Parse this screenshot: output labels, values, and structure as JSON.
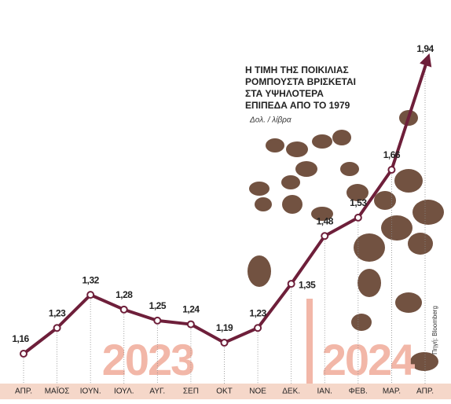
{
  "chart_data": {
    "type": "line",
    "title_lines": [
      "Η ΤΙΜΗ ΤΗΣ ΠΟΙΚΙΛΙΑΣ",
      "ΡΟΜΠΟΥΣΤΑ ΒΡΙΣΚΕΤΑΙ",
      "ΣΤΑ ΥΨΗΛΟΤΕΡΑ",
      "ΕΠΙΠΕΔΑ ΑΠΟ ΤΟ 1979"
    ],
    "subtitle": "Δολ. / λίβρα",
    "source": "Πηγή: Bloomberg",
    "annotations": [
      "2023",
      "2024"
    ],
    "categories": [
      "ΑΠΡ.",
      "ΜΑΪΟΣ",
      "ΙΟΥΝ.",
      "ΙΟΥΛ.",
      "ΑΥΓ.",
      "ΣΕΠ",
      "ΟΚΤ",
      "ΝΟΕ",
      "ΔΕΚ.",
      "ΙΑΝ.",
      "ΦΕΒ.",
      "ΜΑΡ.",
      "ΑΠΡ."
    ],
    "values": [
      1.16,
      1.23,
      1.32,
      1.28,
      1.25,
      1.24,
      1.19,
      1.23,
      1.35,
      1.48,
      1.53,
      1.66,
      1.94
    ],
    "value_labels": [
      "1,16",
      "1,23",
      "1,32",
      "1,28",
      "1,25",
      "1,24",
      "1,19",
      "1,23",
      "1,35",
      "1,48",
      "1,53",
      "1,66",
      "1,94"
    ],
    "color": "#6e1f3a"
  }
}
